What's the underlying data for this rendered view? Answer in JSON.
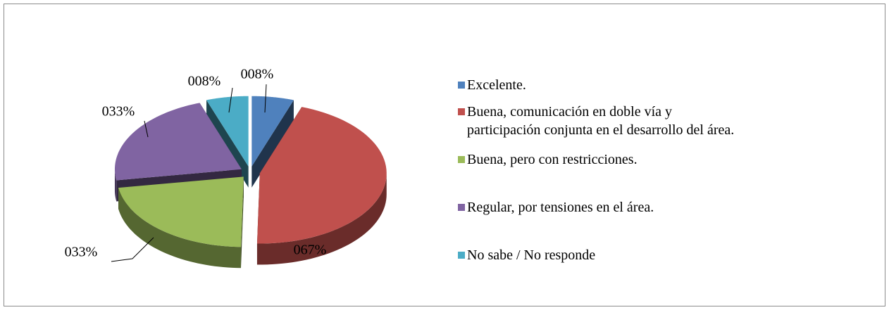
{
  "chart_data": {
    "type": "pie3d",
    "series": [
      {
        "name": "Excelente.",
        "color": "#4f81bd",
        "value": 8,
        "value_label": "008%"
      },
      {
        "name": "Buena, comunicación en doble vía y\nparticipación conjunta en el desarrollo del área.",
        "color": "#c0504d",
        "value": 67,
        "value_label": "067%"
      },
      {
        "name": "Buena, pero con restricciones.",
        "color": "#9bbb59",
        "value": 33,
        "value_label": "033%"
      },
      {
        "name": "Regular, por tensiones en el área.",
        "color": "#8064a2",
        "value": 33,
        "value_label": "033%"
      },
      {
        "name": "No sabe / No responde",
        "color": "#4bacc6",
        "value": 8,
        "value_label": "008%"
      }
    ],
    "legend": "right"
  }
}
